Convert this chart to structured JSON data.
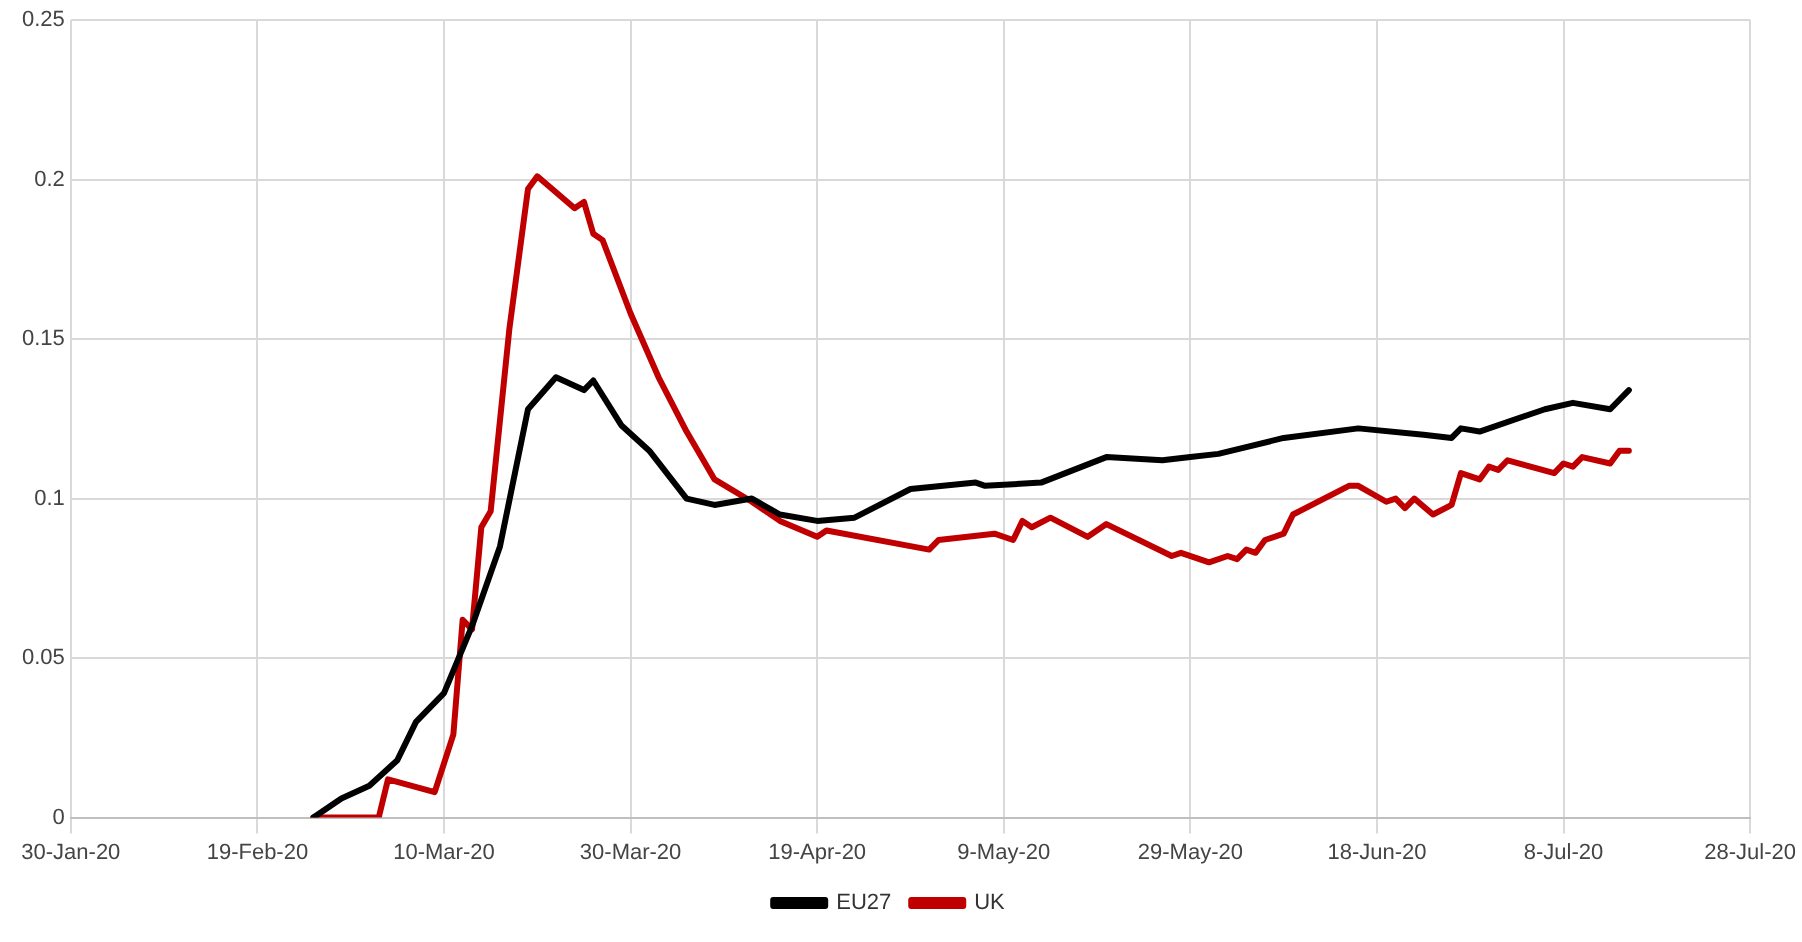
{
  "chart_data": {
    "type": "line",
    "xlim": [
      "2020-01-30",
      "2020-07-28"
    ],
    "xticks": [
      {
        "value": "2020-01-30",
        "label": "30-Jan-20"
      },
      {
        "value": "2020-02-19",
        "label": "19-Feb-20"
      },
      {
        "value": "2020-03-10",
        "label": "10-Mar-20"
      },
      {
        "value": "2020-03-30",
        "label": "30-Mar-20"
      },
      {
        "value": "2020-04-19",
        "label": "19-Apr-20"
      },
      {
        "value": "2020-05-09",
        "label": "9-May-20"
      },
      {
        "value": "2020-05-29",
        "label": "29-May-20"
      },
      {
        "value": "2020-06-18",
        "label": "18-Jun-20"
      },
      {
        "value": "2020-07-08",
        "label": "8-Jul-20"
      },
      {
        "value": "2020-07-28",
        "label": "28-Jul-20"
      }
    ],
    "ylim": [
      0,
      0.25
    ],
    "yticks": [
      0,
      0.05,
      0.1,
      0.15,
      0.2,
      0.25
    ],
    "grid": true,
    "legend": "bottom",
    "marker": "none",
    "line_style": "solid",
    "series": [
      {
        "name": "EU27",
        "color": "#000000",
        "x": [
          "2020-02-25",
          "2020-02-28",
          "2020-03-02",
          "2020-03-05",
          "2020-03-07",
          "2020-03-10",
          "2020-03-13",
          "2020-03-16",
          "2020-03-19",
          "2020-03-22",
          "2020-03-25",
          "2020-03-26",
          "2020-03-29",
          "2020-04-01",
          "2020-04-05",
          "2020-04-08",
          "2020-04-12",
          "2020-04-15",
          "2020-04-19",
          "2020-04-23",
          "2020-04-29",
          "2020-05-06",
          "2020-05-07",
          "2020-05-13",
          "2020-05-20",
          "2020-05-26",
          "2020-05-29",
          "2020-06-01",
          "2020-06-08",
          "2020-06-16",
          "2020-06-23",
          "2020-06-26",
          "2020-06-27",
          "2020-06-29",
          "2020-07-06",
          "2020-07-09",
          "2020-07-13",
          "2020-07-15"
        ],
        "values": [
          0,
          0.006,
          0.01,
          0.018,
          0.03,
          0.039,
          0.06,
          0.085,
          0.128,
          0.138,
          0.134,
          0.137,
          0.123,
          0.115,
          0.1,
          0.098,
          0.1,
          0.095,
          0.093,
          0.094,
          0.103,
          0.105,
          0.104,
          0.105,
          0.113,
          0.112,
          0.113,
          0.114,
          0.119,
          0.122,
          0.12,
          0.119,
          0.122,
          0.121,
          0.128,
          0.13,
          0.128,
          0.134
        ]
      },
      {
        "name": "UK",
        "color": "#c00000",
        "x": [
          "2020-02-25",
          "2020-03-03",
          "2020-03-04",
          "2020-03-09",
          "2020-03-11",
          "2020-03-12",
          "2020-03-13",
          "2020-03-14",
          "2020-03-15",
          "2020-03-17",
          "2020-03-19",
          "2020-03-20",
          "2020-03-24",
          "2020-03-25",
          "2020-03-26",
          "2020-03-27",
          "2020-03-30",
          "2020-04-02",
          "2020-04-05",
          "2020-04-08",
          "2020-04-12",
          "2020-04-15",
          "2020-04-19",
          "2020-04-20",
          "2020-05-01",
          "2020-05-02",
          "2020-05-08",
          "2020-05-10",
          "2020-05-11",
          "2020-05-12",
          "2020-05-14",
          "2020-05-18",
          "2020-05-20",
          "2020-05-27",
          "2020-05-28",
          "2020-05-31",
          "2020-06-02",
          "2020-06-03",
          "2020-06-04",
          "2020-06-05",
          "2020-06-06",
          "2020-06-08",
          "2020-06-09",
          "2020-06-15",
          "2020-06-16",
          "2020-06-19",
          "2020-06-20",
          "2020-06-21",
          "2020-06-22",
          "2020-06-24",
          "2020-06-26",
          "2020-06-27",
          "2020-06-29",
          "2020-06-30",
          "2020-07-01",
          "2020-07-02",
          "2020-07-07",
          "2020-07-08",
          "2020-07-09",
          "2020-07-10",
          "2020-07-13",
          "2020-07-14",
          "2020-07-15"
        ],
        "values": [
          0,
          0,
          0.012,
          0.008,
          0.026,
          0.062,
          0.059,
          0.091,
          0.096,
          0.153,
          0.197,
          0.201,
          0.191,
          0.193,
          0.183,
          0.181,
          0.158,
          0.138,
          0.121,
          0.106,
          0.099,
          0.093,
          0.088,
          0.09,
          0.084,
          0.087,
          0.089,
          0.087,
          0.093,
          0.091,
          0.094,
          0.088,
          0.092,
          0.082,
          0.083,
          0.08,
          0.082,
          0.081,
          0.084,
          0.083,
          0.087,
          0.089,
          0.095,
          0.104,
          0.104,
          0.099,
          0.1,
          0.097,
          0.1,
          0.095,
          0.098,
          0.108,
          0.106,
          0.11,
          0.109,
          0.112,
          0.108,
          0.111,
          0.11,
          0.113,
          0.111,
          0.115,
          0.115
        ]
      }
    ]
  }
}
